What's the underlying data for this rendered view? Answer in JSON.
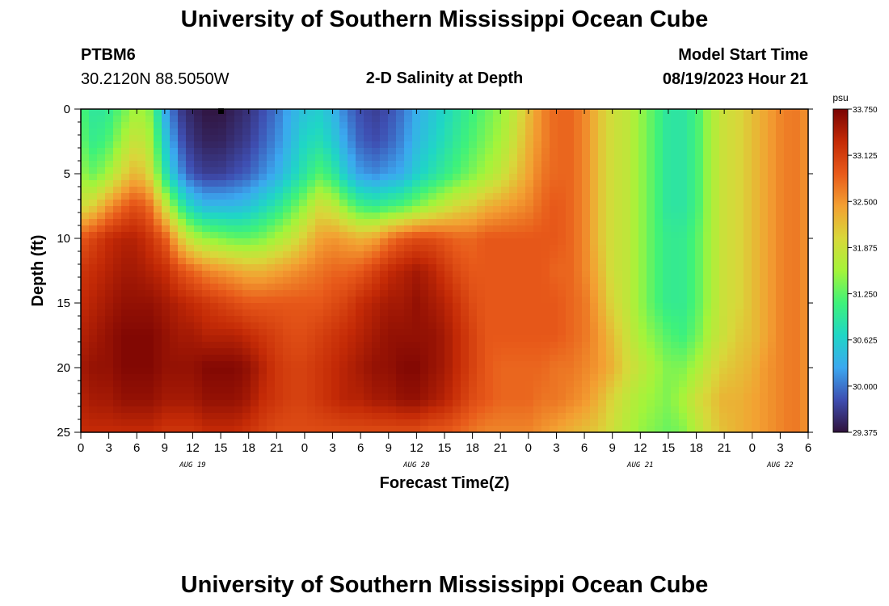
{
  "header": {
    "title": "University of Southern Mississippi Ocean Cube",
    "station_id": "PTBM6",
    "coords": "30.2120N  88.5050W",
    "plot_title": "2-D Salinity at Depth",
    "model_start_label": "Model Start Time",
    "model_start_value": "08/19/2023 Hour 21"
  },
  "footer": {
    "title": "University of Southern Mississippi Ocean Cube"
  },
  "chart_data": {
    "type": "heatmap",
    "title": "2-D Salinity at Depth",
    "xlabel": "Forecast Time(Z)",
    "ylabel": "Depth (ft)",
    "x_range_hours": [
      0,
      78
    ],
    "y_range_ft": [
      0,
      25
    ],
    "x_tick_labels": [
      "0",
      "3",
      "6",
      "9",
      "12",
      "15",
      "18",
      "21",
      "0",
      "3",
      "6",
      "9",
      "12",
      "15",
      "18",
      "21",
      "0",
      "3",
      "6",
      "9",
      "12",
      "15",
      "18",
      "21",
      "0",
      "3",
      "6"
    ],
    "y_tick_labels": [
      "0",
      "5",
      "10",
      "15",
      "20",
      "25"
    ],
    "day_labels": [
      {
        "label": "AUG 19",
        "hour": 12
      },
      {
        "label": "AUG 20",
        "hour": 36
      },
      {
        "label": "AUG 21",
        "hour": 60
      },
      {
        "label": "AUG 22",
        "hour": 75
      }
    ],
    "colorbar": {
      "unit": "psu",
      "min": 29.375,
      "max": 33.75,
      "tick_values": [
        33.75,
        33.125,
        32.5,
        31.875,
        31.25,
        30.625,
        30.0,
        29.375
      ],
      "tick_labels": [
        "33.750",
        "33.125",
        "32.500",
        "31.875",
        "31.250",
        "30.625",
        "30.000",
        "29.375"
      ],
      "colors": [
        "#30123b",
        "#3e4eb1",
        "#3ba8f0",
        "#1fd6c6",
        "#3ef27a",
        "#a4f43a",
        "#d8d83a",
        "#f3a032",
        "#e85a1a",
        "#c42a06",
        "#7a0403"
      ]
    },
    "grid_cols_hours": [
      0,
      1.5,
      3,
      4.5,
      6,
      7.5,
      9,
      10.5,
      12,
      13.5,
      15,
      16.5,
      18,
      19.5,
      21,
      22.5,
      24,
      25.5,
      27,
      28.5,
      30,
      31.5,
      33,
      34.5,
      36,
      37.5,
      39,
      40.5,
      42,
      43.5,
      45,
      46.5,
      48,
      49.5,
      51,
      52.5,
      54,
      55.5,
      57,
      58.5,
      60,
      61.5,
      63,
      64.5,
      66,
      67.5,
      69,
      70.5,
      72,
      73.5,
      75,
      76.5,
      78
    ],
    "grid_rows_ft": [
      0,
      2.5,
      5,
      7.5,
      10,
      12.5,
      15,
      17.5,
      20,
      22.5,
      25
    ],
    "salinity_psu": [
      [
        31.2,
        30.9,
        31.0,
        31.3,
        31.6,
        31.4,
        30.3,
        29.7,
        29.5,
        29.4,
        29.4,
        29.5,
        29.6,
        29.8,
        30.0,
        30.3,
        30.5,
        30.6,
        30.4,
        30.0,
        29.8,
        29.7,
        29.8,
        30.0,
        30.3,
        30.5,
        30.7,
        30.9,
        31.1,
        31.3,
        31.5,
        31.8,
        32.2,
        32.6,
        32.8,
        32.8,
        32.6,
        32.2,
        31.9,
        31.8,
        31.5,
        31.2,
        30.9,
        30.9,
        31.1,
        31.6,
        31.9,
        32.0,
        32.2,
        32.4,
        32.6,
        32.7,
        32.5
      ],
      [
        31.3,
        31.0,
        31.2,
        31.6,
        31.9,
        31.6,
        30.6,
        29.9,
        29.6,
        29.5,
        29.5,
        29.6,
        29.7,
        29.9,
        30.1,
        30.4,
        30.7,
        30.8,
        30.6,
        30.2,
        29.9,
        29.8,
        29.9,
        30.1,
        30.4,
        30.6,
        30.8,
        31.0,
        31.2,
        31.4,
        31.6,
        31.9,
        32.3,
        32.6,
        32.8,
        32.8,
        32.6,
        32.2,
        31.9,
        31.8,
        31.5,
        31.2,
        30.9,
        30.9,
        31.1,
        31.6,
        31.9,
        32.0,
        32.2,
        32.4,
        32.6,
        32.7,
        32.5
      ],
      [
        31.5,
        31.3,
        31.6,
        32.0,
        32.3,
        31.9,
        30.9,
        30.2,
        29.8,
        29.7,
        29.7,
        29.8,
        29.9,
        30.1,
        30.3,
        30.6,
        30.9,
        31.2,
        31.0,
        30.5,
        30.2,
        30.1,
        30.2,
        30.3,
        30.6,
        30.8,
        31.0,
        31.2,
        31.4,
        31.6,
        31.8,
        32.1,
        32.4,
        32.7,
        32.8,
        32.8,
        32.6,
        32.2,
        31.9,
        31.8,
        31.5,
        31.2,
        30.9,
        30.9,
        31.1,
        31.6,
        31.9,
        32.0,
        32.2,
        32.4,
        32.6,
        32.7,
        32.5
      ],
      [
        31.9,
        32.1,
        32.5,
        32.8,
        33.0,
        32.7,
        31.9,
        31.1,
        30.6,
        30.4,
        30.4,
        30.4,
        30.5,
        30.7,
        30.9,
        31.2,
        31.5,
        31.9,
        31.8,
        31.4,
        31.1,
        31.0,
        31.1,
        31.2,
        31.4,
        31.6,
        31.8,
        32.0,
        32.1,
        32.3,
        32.4,
        32.5,
        32.6,
        32.8,
        32.9,
        32.8,
        32.6,
        32.2,
        31.9,
        31.8,
        31.5,
        31.2,
        30.9,
        30.9,
        31.1,
        31.6,
        31.9,
        32.0,
        32.2,
        32.4,
        32.6,
        32.7,
        32.5
      ],
      [
        32.9,
        33.1,
        33.3,
        33.4,
        33.4,
        33.2,
        32.9,
        32.2,
        31.7,
        31.5,
        31.4,
        31.3,
        31.3,
        31.4,
        31.6,
        31.8,
        32.1,
        32.4,
        32.5,
        32.4,
        32.3,
        32.4,
        32.7,
        32.9,
        33.0,
        33.0,
        32.9,
        32.8,
        32.8,
        32.9,
        32.9,
        32.9,
        32.9,
        32.9,
        32.9,
        32.8,
        32.6,
        32.2,
        31.9,
        31.8,
        31.5,
        31.2,
        31.0,
        31.0,
        31.2,
        31.6,
        31.9,
        32.0,
        32.2,
        32.4,
        32.6,
        32.7,
        32.5
      ],
      [
        33.2,
        33.3,
        33.4,
        33.5,
        33.5,
        33.4,
        33.3,
        33.0,
        32.8,
        32.6,
        32.5,
        32.4,
        32.3,
        32.3,
        32.4,
        32.5,
        32.6,
        32.7,
        32.8,
        32.8,
        32.9,
        33.1,
        33.3,
        33.4,
        33.5,
        33.4,
        33.2,
        33.0,
        32.9,
        32.9,
        32.9,
        32.9,
        32.9,
        32.9,
        32.8,
        32.8,
        32.6,
        32.3,
        31.9,
        31.8,
        31.5,
        31.2,
        31.0,
        31.0,
        31.2,
        31.6,
        31.9,
        32.0,
        32.2,
        32.4,
        32.6,
        32.7,
        32.5
      ],
      [
        33.3,
        33.4,
        33.5,
        33.6,
        33.6,
        33.6,
        33.5,
        33.4,
        33.3,
        33.2,
        33.1,
        33.0,
        32.9,
        32.9,
        32.9,
        32.9,
        32.9,
        32.9,
        33.0,
        33.1,
        33.3,
        33.4,
        33.5,
        33.5,
        33.6,
        33.5,
        33.4,
        33.2,
        33.0,
        32.9,
        32.9,
        32.9,
        32.9,
        32.9,
        32.9,
        32.8,
        32.7,
        32.4,
        32.0,
        31.8,
        31.5,
        31.2,
        31.0,
        31.0,
        31.2,
        31.6,
        31.9,
        32.0,
        32.2,
        32.4,
        32.6,
        32.7,
        32.5
      ],
      [
        33.4,
        33.5,
        33.6,
        33.7,
        33.7,
        33.7,
        33.6,
        33.5,
        33.5,
        33.4,
        33.4,
        33.4,
        33.3,
        33.2,
        33.1,
        33.0,
        33.0,
        33.1,
        33.2,
        33.3,
        33.4,
        33.5,
        33.6,
        33.6,
        33.6,
        33.6,
        33.5,
        33.3,
        33.1,
        32.9,
        32.9,
        32.9,
        32.9,
        32.9,
        32.9,
        32.8,
        32.7,
        32.5,
        32.2,
        31.9,
        31.6,
        31.4,
        31.2,
        31.1,
        31.3,
        31.7,
        31.9,
        32.1,
        32.2,
        32.4,
        32.6,
        32.7,
        32.5
      ],
      [
        33.5,
        33.6,
        33.6,
        33.7,
        33.7,
        33.7,
        33.6,
        33.6,
        33.6,
        33.7,
        33.7,
        33.7,
        33.6,
        33.4,
        33.2,
        33.1,
        33.1,
        33.2,
        33.3,
        33.4,
        33.5,
        33.6,
        33.6,
        33.7,
        33.7,
        33.6,
        33.5,
        33.3,
        33.1,
        32.9,
        32.8,
        32.8,
        32.8,
        32.8,
        32.7,
        32.7,
        32.6,
        32.5,
        32.3,
        32.0,
        31.8,
        31.6,
        31.4,
        31.4,
        31.6,
        31.9,
        32.1,
        32.2,
        32.3,
        32.5,
        32.6,
        32.7,
        32.5
      ],
      [
        33.4,
        33.5,
        33.5,
        33.6,
        33.6,
        33.6,
        33.5,
        33.5,
        33.5,
        33.6,
        33.6,
        33.6,
        33.5,
        33.3,
        33.2,
        33.1,
        33.1,
        33.2,
        33.3,
        33.4,
        33.4,
        33.5,
        33.5,
        33.6,
        33.6,
        33.5,
        33.4,
        33.2,
        33.0,
        32.9,
        32.8,
        32.8,
        32.8,
        32.7,
        32.7,
        32.6,
        32.5,
        32.3,
        32.0,
        31.8,
        31.6,
        31.5,
        31.4,
        31.6,
        31.9,
        32.1,
        32.3,
        32.3,
        32.4,
        32.5,
        32.6,
        32.7,
        32.5
      ],
      [
        33.3,
        33.3,
        33.3,
        33.3,
        33.3,
        33.3,
        33.2,
        33.2,
        33.2,
        33.3,
        33.3,
        33.3,
        33.2,
        33.1,
        33.0,
        33.0,
        33.0,
        33.0,
        33.0,
        33.0,
        33.0,
        33.0,
        33.0,
        33.0,
        33.0,
        32.9,
        32.9,
        32.8,
        32.7,
        32.6,
        32.6,
        32.6,
        32.6,
        32.5,
        32.4,
        32.3,
        32.2,
        32.1,
        31.9,
        31.7,
        31.5,
        31.4,
        31.3,
        31.4,
        31.7,
        32.0,
        32.2,
        32.3,
        32.4,
        32.5,
        32.6,
        32.7,
        32.5
      ]
    ]
  }
}
